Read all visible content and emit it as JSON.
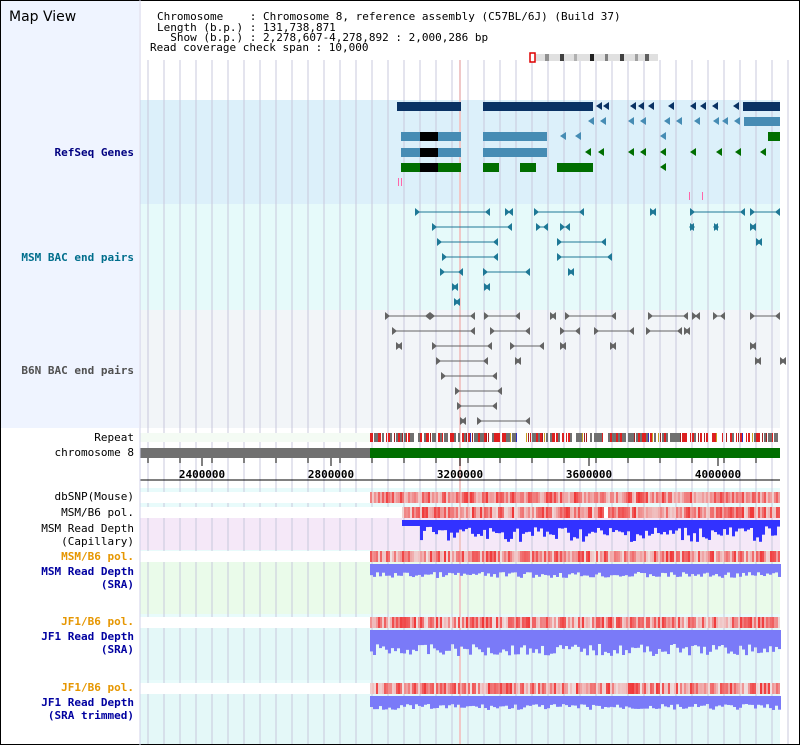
{
  "map_title": "Map View",
  "info": {
    "chromosome_line": "Chromosome    : Chromosome 8, reference assembly (C57BL/6J) (Build 37)",
    "length_line": "Length (b.p.) : 131,738,871",
    "show_line": "  Show (b.p.) : 2,278,607-4,278,892 : 2,000,286 bp",
    "coverage_line": "Read coverage check span : 10,000"
  },
  "tracks": {
    "refseq": "RefSeq Genes",
    "msm_bac": "MSM BAC end pairs",
    "b6n_bac": "B6N BAC end pairs",
    "repeat": "Repeat",
    "chromosome": "chromosome 8",
    "dbsnp": "dbSNP(Mouse)",
    "msm_b6_pol_1": "MSM/B6 pol.",
    "msm_read_depth_cap_1": "MSM Read Depth",
    "msm_read_depth_cap_2": "(Capillary)",
    "msm_b6_pol_2": "MSM/B6 pol.",
    "msm_read_depth_sra_1": "MSM Read Depth",
    "msm_read_depth_sra_2": "(SRA)",
    "jf1_b6_pol_1": "JF1/B6 pol.",
    "jf1_read_depth_sra_1": "JF1 Read Depth",
    "jf1_read_depth_sra_2": "(SRA)",
    "jf1_b6_pol_2": "JF1/B6 pol.",
    "jf1_read_depth_trim_1": "JF1 Read Depth",
    "jf1_read_depth_trim_2": "(SRA trimmed)"
  },
  "axis": {
    "ticks": [
      "2400000",
      "2800000",
      "3200000",
      "3600000",
      "4000000"
    ]
  },
  "colors": {
    "refseq_bg": "#dcf0fa",
    "msm_bac_bg": "#e6fafa",
    "b6n_bac_bg": "#f2f5f8",
    "refseq_label": "#000080",
    "msm_bac_label": "#006e8c",
    "b6n_bac_label": "#505050",
    "pol_label": "#e69600",
    "depth_label": "#0000a0",
    "gene_dark": "#0a3264",
    "gene_mid": "#468cb4",
    "gene_green": "#006e00",
    "chrom_bar": "#006e00",
    "chrom_gap": "#707070"
  }
}
